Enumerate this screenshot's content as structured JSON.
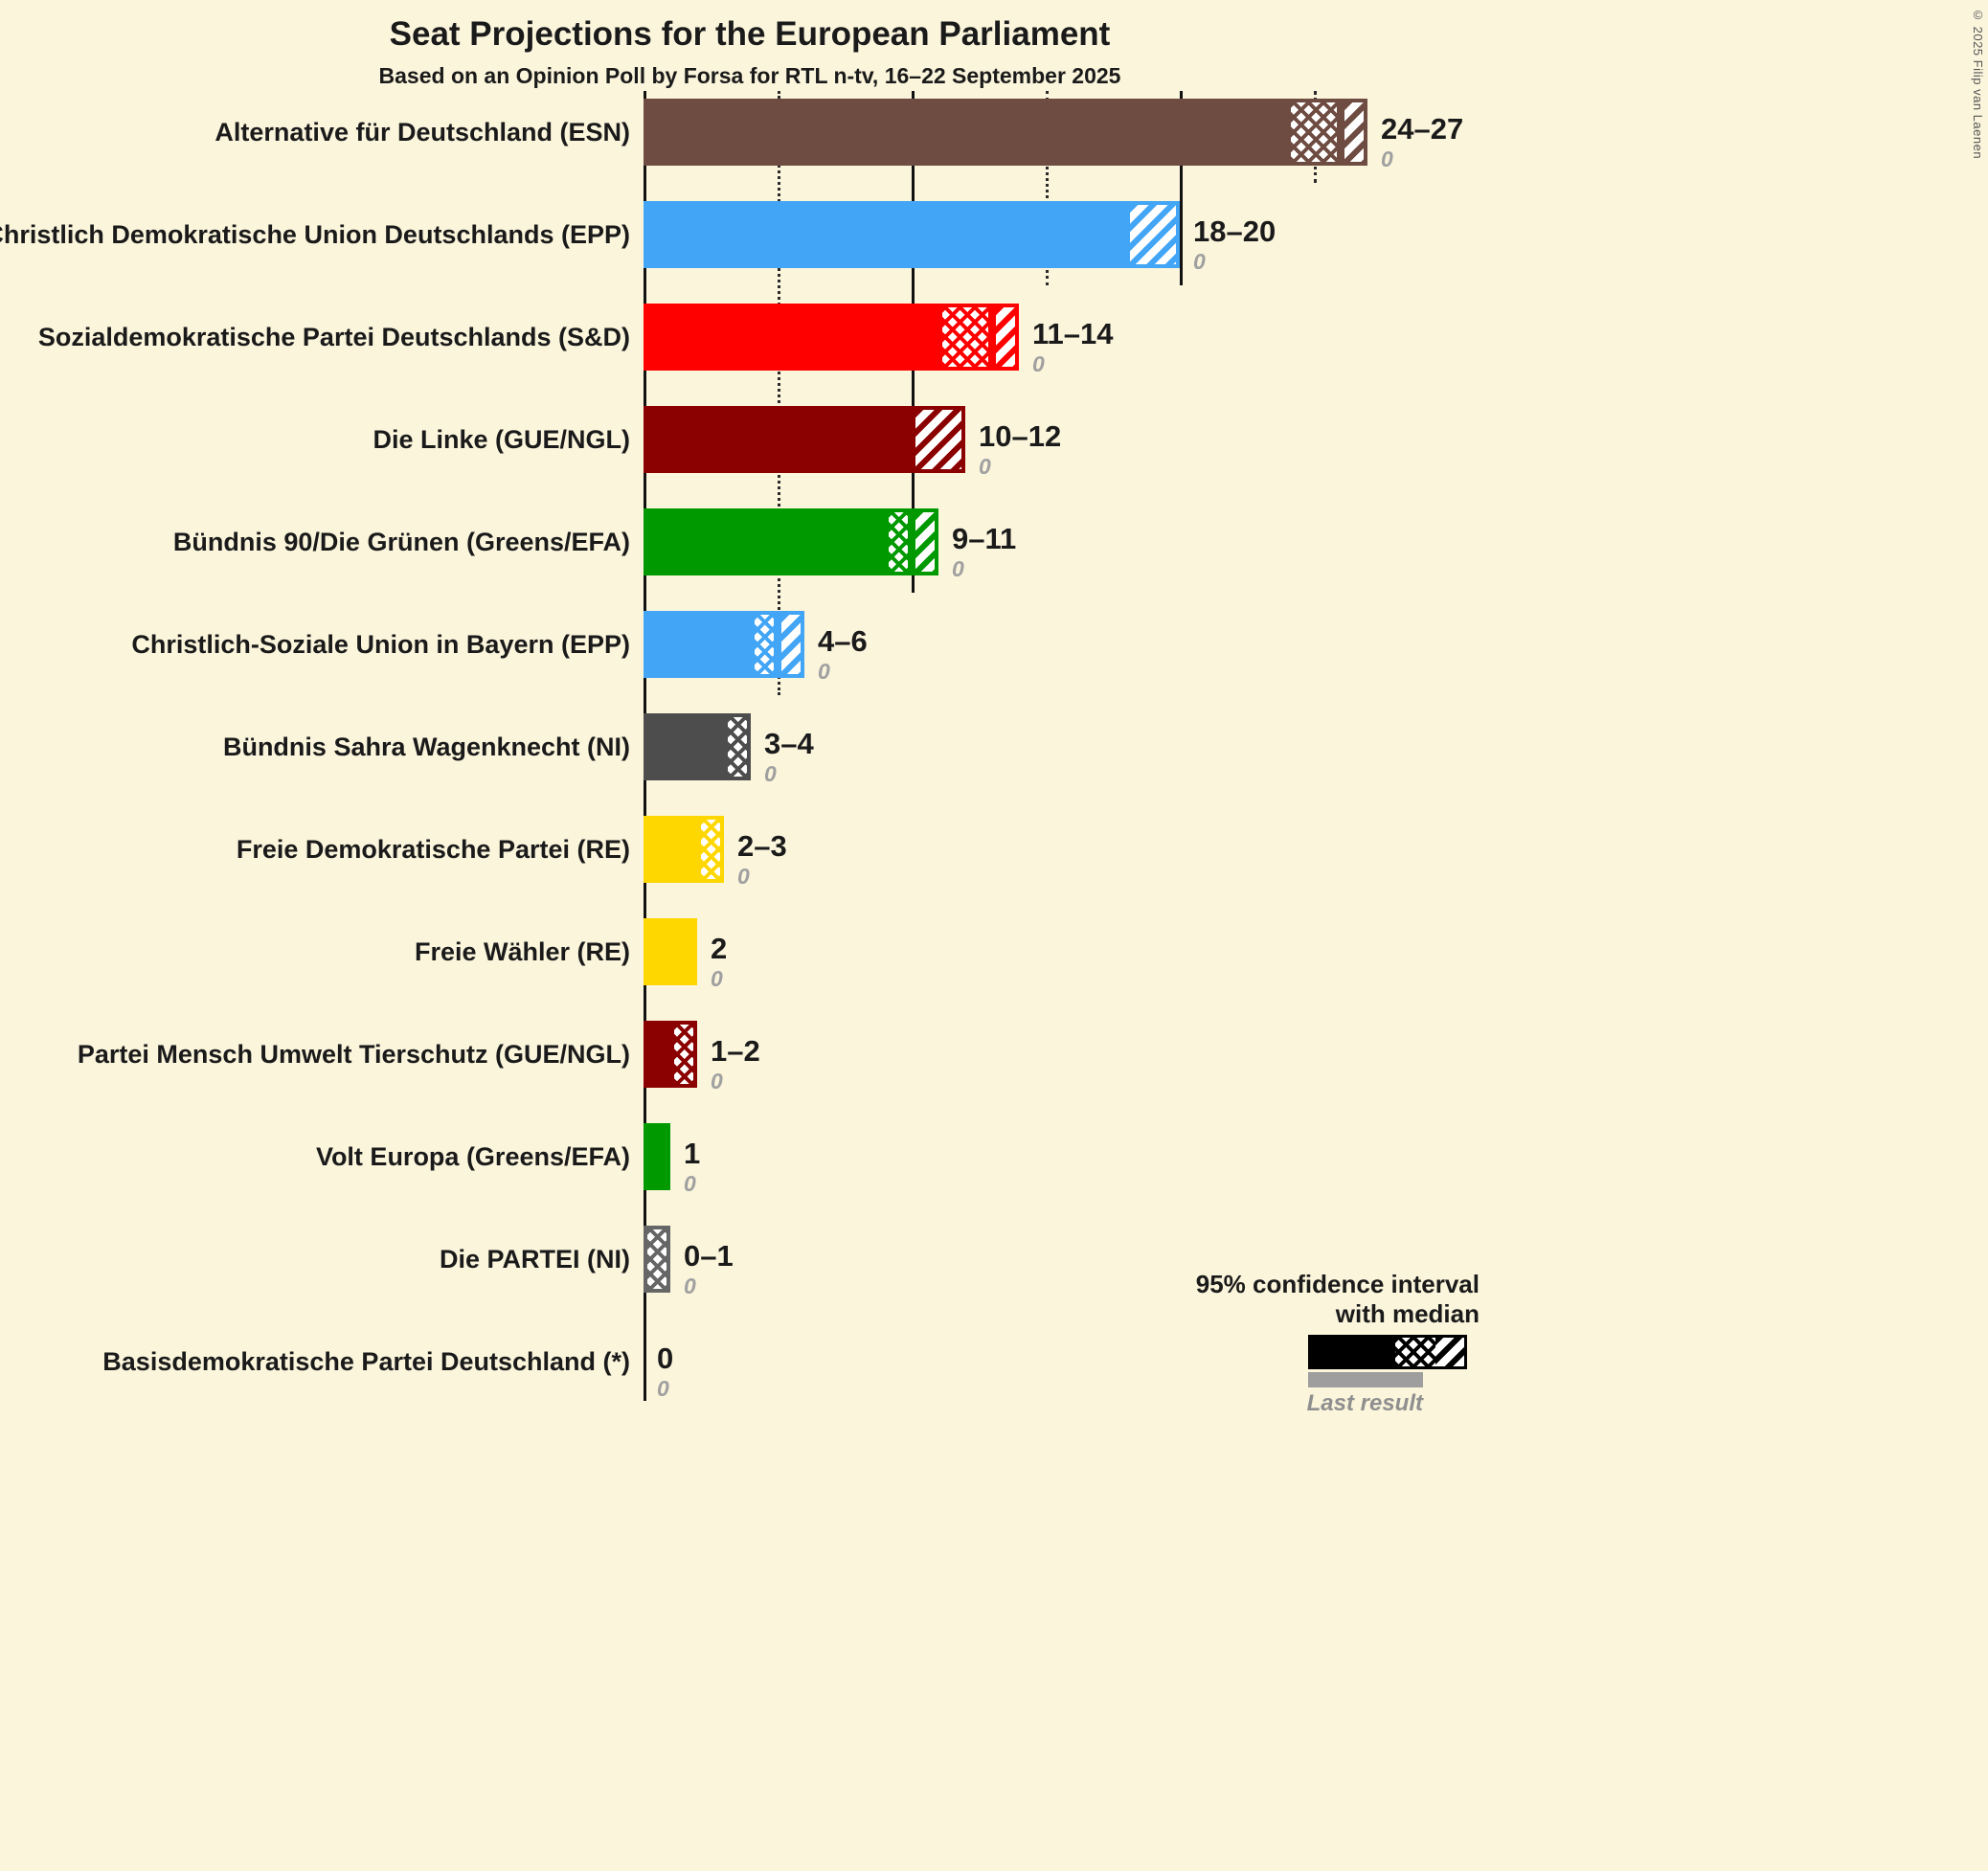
{
  "title": "Seat Projections for the European Parliament",
  "subtitle": "Based on an Opinion Poll by Forsa for RTL n-tv, 16–22 September 2025",
  "copyright": "© 2025 Filip van Laenen",
  "colors": {
    "background": "#FBF5DC",
    "text": "#1a1a1a",
    "last_result_gray": "#9e9e9e"
  },
  "legend": {
    "line1": "95% confidence interval",
    "line2": "with median",
    "last_result": "Last result"
  },
  "chart_data": {
    "type": "bar",
    "orientation": "horizontal",
    "unit": "seats",
    "x_axis": {
      "min": 0,
      "max": 27,
      "step": 5,
      "solid_every": 10
    },
    "note": "Each bar: solid = up to CI low, crosshatch = low to median, diagonal = median to CI high; italic gray number is last result",
    "parties": [
      {
        "label": "Alternative für Deutschland (ESN)",
        "color": "#6E4C41",
        "low": 24,
        "median": 26,
        "high": 27,
        "range": "24–27",
        "last_result": "0"
      },
      {
        "label": "Christlich Demokratische Union Deutschlands (EPP)",
        "color": "#42A5F5",
        "low": 18,
        "median": 18,
        "high": 20,
        "range": "18–20",
        "last_result": "0"
      },
      {
        "label": "Sozialdemokratische Partei Deutschlands (S&D)",
        "color": "#FF0000",
        "low": 11,
        "median": 13,
        "high": 14,
        "range": "11–14",
        "last_result": "0"
      },
      {
        "label": "Die Linke (GUE/NGL)",
        "color": "#8B0000",
        "low": 10,
        "median": 10,
        "high": 12,
        "range": "10–12",
        "last_result": "0"
      },
      {
        "label": "Bündnis 90/Die Grünen (Greens/EFA)",
        "color": "#009900",
        "low": 9,
        "median": 10,
        "high": 11,
        "range": "9–11",
        "last_result": "0"
      },
      {
        "label": "Christlich-Soziale Union in Bayern (EPP)",
        "color": "#42A5F5",
        "low": 4,
        "median": 5,
        "high": 6,
        "range": "4–6",
        "last_result": "0"
      },
      {
        "label": "Bündnis Sahra Wagenknecht (NI)",
        "color": "#4D4D4D",
        "low": 3,
        "median": 4,
        "high": 4,
        "range": "3–4",
        "last_result": "0"
      },
      {
        "label": "Freie Demokratische Partei (RE)",
        "color": "#FFD700",
        "low": 2,
        "median": 3,
        "high": 3,
        "range": "2–3",
        "last_result": "0"
      },
      {
        "label": "Freie Wähler (RE)",
        "color": "#FFD700",
        "low": 2,
        "median": 2,
        "high": 2,
        "range": "2",
        "last_result": "0"
      },
      {
        "label": "Partei Mensch Umwelt Tierschutz (GUE/NGL)",
        "color": "#8B0000",
        "low": 1,
        "median": 2,
        "high": 2,
        "range": "1–2",
        "last_result": "0"
      },
      {
        "label": "Volt Europa (Greens/EFA)",
        "color": "#009900",
        "low": 1,
        "median": 1,
        "high": 1,
        "range": "1",
        "last_result": "0"
      },
      {
        "label": "Die PARTEI (NI)",
        "color": "#666666",
        "low": 0,
        "median": 1,
        "high": 1,
        "range": "0–1",
        "last_result": "0"
      },
      {
        "label": "Basisdemokratische Partei Deutschland (*)",
        "color": "#888888",
        "low": 0,
        "median": 0,
        "high": 0,
        "range": "0",
        "last_result": "0"
      }
    ]
  }
}
